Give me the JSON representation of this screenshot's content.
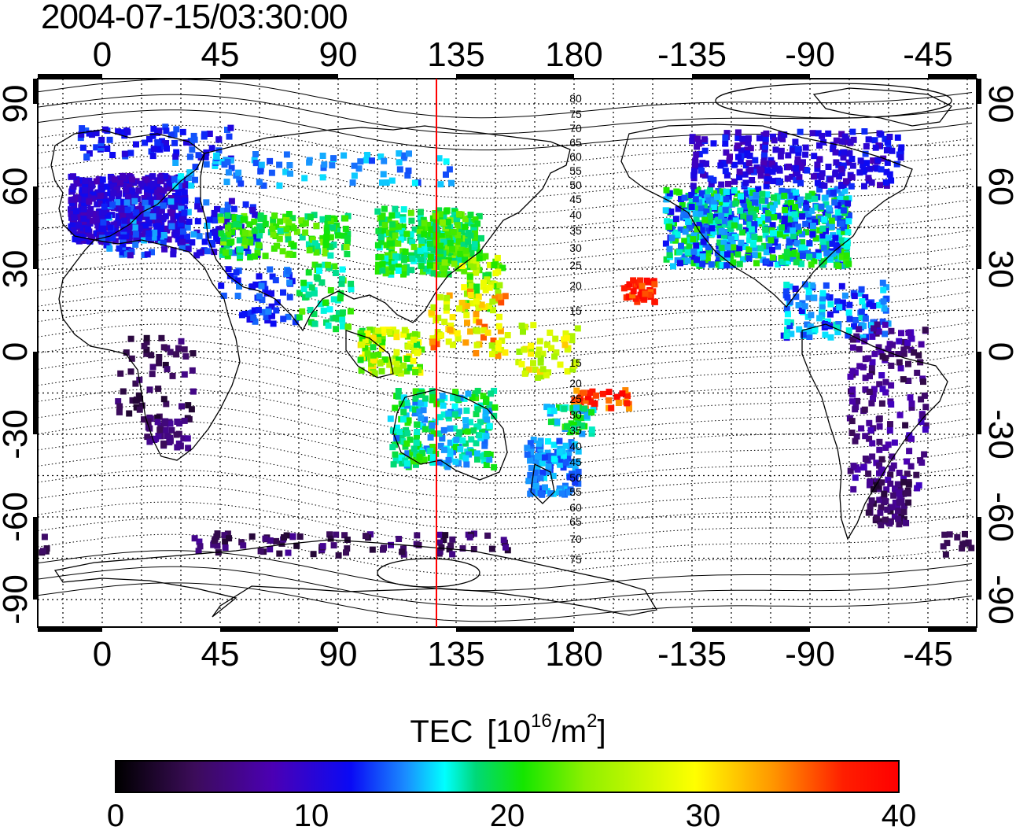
{
  "title": "2004-07-15/03:30:00",
  "map": {
    "x_ticks": [
      "0",
      "45",
      "90",
      "135",
      "180",
      "-135",
      "-90",
      "-45"
    ],
    "y_ticks": [
      "90",
      "60",
      "30",
      "0",
      "-30",
      "-60",
      "-90"
    ],
    "top_contour_labels": [
      "80",
      "75",
      "70",
      "65",
      "60",
      "55",
      "50",
      "45",
      "40",
      "35",
      "30",
      "25",
      "20",
      "15"
    ],
    "bottom_contour_labels": [
      "15",
      "20",
      "25",
      "30",
      "35",
      "40",
      "45",
      "50",
      "55",
      "60",
      "65",
      "70",
      "75"
    ],
    "grid": "dotted 15° graticule",
    "meridian_line": {
      "longitude": 127,
      "color": "#ff0000"
    }
  },
  "colorbar": {
    "title": "TEC",
    "unit_prefix": "[10",
    "unit_exp": "16",
    "unit_mid": "/m",
    "unit_exp2": "2",
    "unit_suffix": "]",
    "ticks": [
      "0",
      "10",
      "20",
      "30",
      "40"
    ],
    "range": [
      0,
      40
    ]
  }
}
